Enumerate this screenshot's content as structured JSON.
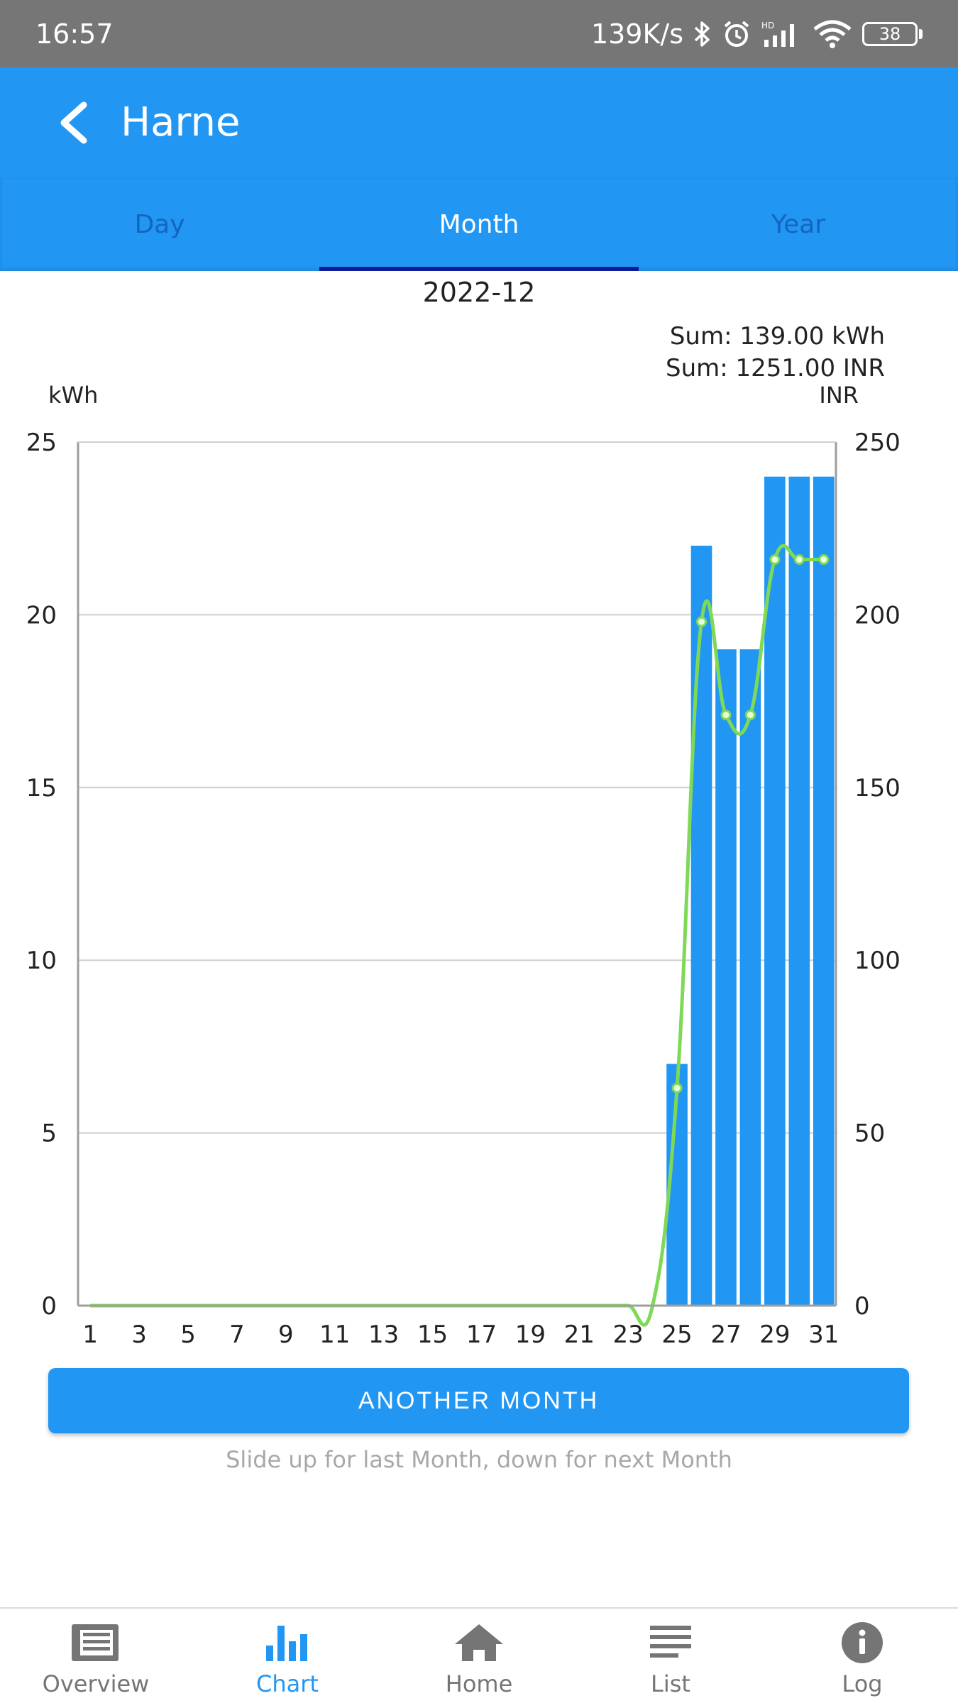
{
  "status_bar": {
    "time": "16:57",
    "net_speed": "139K/s",
    "battery": "38",
    "hd_label": "HD"
  },
  "app_bar": {
    "title": "Harne"
  },
  "tabs": [
    {
      "label": "Day",
      "active": false
    },
    {
      "label": "Month",
      "active": true
    },
    {
      "label": "Year",
      "active": false
    }
  ],
  "period": "2022-12",
  "sum_kwh": "Sum: 139.00 kWh",
  "sum_inr": "Sum: 1251.00 INR",
  "chart_data": {
    "type": "bar",
    "left_axis_label": "kWh",
    "right_axis_label": "INR",
    "left_ylim": [
      0,
      25
    ],
    "right_ylim": [
      0,
      250
    ],
    "left_ticks": [
      0,
      5,
      10,
      15,
      20,
      25
    ],
    "right_ticks": [
      0,
      50,
      100,
      150,
      200,
      250
    ],
    "x_tick_labels": [
      "1",
      "3",
      "5",
      "7",
      "9",
      "11",
      "13",
      "15",
      "17",
      "19",
      "21",
      "23",
      "25",
      "27",
      "29",
      "31"
    ],
    "days": [
      1,
      2,
      3,
      4,
      5,
      6,
      7,
      8,
      9,
      10,
      11,
      12,
      13,
      14,
      15,
      16,
      17,
      18,
      19,
      20,
      21,
      22,
      23,
      24,
      25,
      26,
      27,
      28,
      29,
      30,
      31
    ],
    "series": [
      {
        "unit": "kWh",
        "type": "bar",
        "color": "#2196f3",
        "values": [
          0,
          0,
          0,
          0,
          0,
          0,
          0,
          0,
          0,
          0,
          0,
          0,
          0,
          0,
          0,
          0,
          0,
          0,
          0,
          0,
          0,
          0,
          0,
          0,
          7,
          22,
          19,
          19,
          24,
          24,
          24
        ]
      },
      {
        "unit": "INR",
        "type": "line",
        "color": "#7ed957",
        "values": [
          0,
          0,
          0,
          0,
          0,
          0,
          0,
          0,
          0,
          0,
          0,
          0,
          0,
          0,
          0,
          0,
          0,
          0,
          0,
          0,
          0,
          0,
          0,
          0,
          63,
          198,
          171,
          171,
          216,
          216,
          216
        ]
      }
    ],
    "grid": true
  },
  "another_button_label": "ANOTHER MONTH",
  "hint": "Slide up for last Month, down for next Month",
  "bottom_nav": [
    {
      "label": "Overview",
      "icon": "overview-icon",
      "active": false
    },
    {
      "label": "Chart",
      "icon": "chart-icon",
      "active": true
    },
    {
      "label": "Home",
      "icon": "home-icon",
      "active": false
    },
    {
      "label": "List",
      "icon": "list-icon",
      "active": false
    },
    {
      "label": "Log",
      "icon": "info-icon",
      "active": false
    }
  ]
}
